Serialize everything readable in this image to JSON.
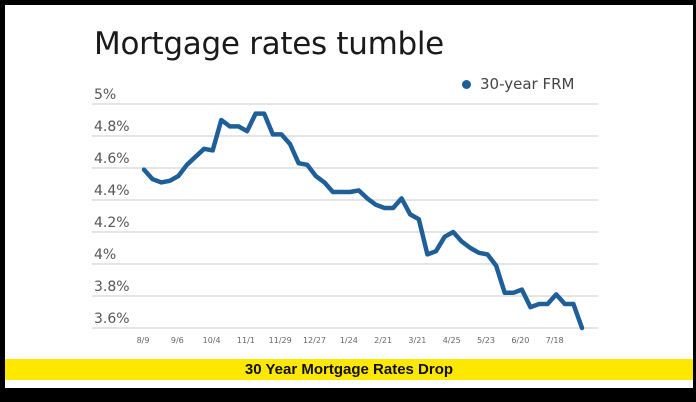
{
  "caption": "30 Year Mortgage Rates Drop",
  "colors": {
    "line": "#1f5f99",
    "gridline": "#dcdcdc",
    "caption_bg": "#ffe800",
    "frame": "#000000"
  },
  "chart_data": {
    "type": "line",
    "title": "Mortgage rates tumble",
    "xlabel": "",
    "ylabel": "",
    "ylim": [
      3.6,
      5.0
    ],
    "grid": true,
    "legend_position": "top-right",
    "y_ticks": [
      "5%",
      "4.8%",
      "4.6%",
      "4.4%",
      "4.2%",
      "4%",
      "3.8%",
      "3.6%"
    ],
    "x_ticks": [
      "8/9",
      "9/6",
      "10/4",
      "11/1",
      "11/29",
      "12/27",
      "1/24",
      "2/21",
      "3/21",
      "4/25",
      "5/23",
      "6/20",
      "7/18"
    ],
    "series": [
      {
        "name": "30-year FRM",
        "values": [
          4.59,
          4.53,
          4.51,
          4.52,
          4.55,
          4.62,
          4.67,
          4.72,
          4.71,
          4.9,
          4.86,
          4.86,
          4.83,
          4.94,
          4.94,
          4.81,
          4.81,
          4.75,
          4.63,
          4.62,
          4.55,
          4.51,
          4.45,
          4.45,
          4.45,
          4.46,
          4.41,
          4.37,
          4.35,
          4.35,
          4.41,
          4.31,
          4.28,
          4.06,
          4.08,
          4.17,
          4.2,
          4.14,
          4.1,
          4.07,
          4.06,
          3.99,
          3.82,
          3.82,
          3.84,
          3.73,
          3.75,
          3.75,
          3.81,
          3.75,
          3.75,
          3.6
        ]
      }
    ]
  }
}
